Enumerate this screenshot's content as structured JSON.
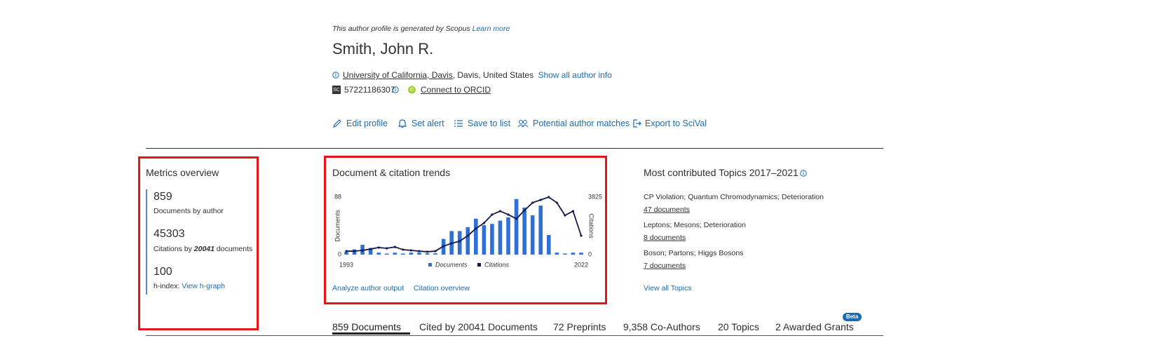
{
  "header": {
    "notice": "This author profile is generated by Scopus",
    "learn_more": "Learn more",
    "name": "Smith, John R.",
    "institution": "University of California, Davis",
    "location": ", Davis, United States",
    "show_info": "Show all author info",
    "id_badge": "SC",
    "author_id": "57221186307",
    "orcid_icon": "iD",
    "orcid_link": "Connect to ORCID"
  },
  "actions": [
    "Edit profile",
    "Set alert",
    "Save to list",
    "Potential author matches",
    "Export to SciVal"
  ],
  "metrics": {
    "title": "Metrics overview",
    "documents": {
      "value": "859",
      "label": "Documents by author"
    },
    "citations": {
      "value": "45303",
      "label_prefix": "Citations by",
      "label_number": "20041",
      "label_suffix": "documents"
    },
    "h_index": {
      "value": "100",
      "label": "h-index:",
      "link": "View h-graph"
    }
  },
  "trends": {
    "title": "Document & citation trends",
    "links": [
      "Analyze author output",
      "Citation overview"
    ]
  },
  "chart_data": {
    "type": "bar",
    "categories": [
      "1993",
      null,
      null,
      null,
      null,
      null,
      null,
      null,
      null,
      null,
      null,
      null,
      null,
      null,
      null,
      null,
      null,
      null,
      null,
      null,
      null,
      null,
      null,
      null,
      null,
      null,
      null,
      null,
      null,
      "2022"
    ],
    "y_label": "Documents",
    "y2_label": "Citations",
    "ylim": [
      0,
      88
    ],
    "yticks": [
      0,
      88
    ],
    "y2lim": [
      0,
      3825
    ],
    "y2ticks": [
      0,
      3825
    ],
    "series": [
      {
        "name": "Documents",
        "type": "bar",
        "color": "#2f6fd6",
        "values": [
          4,
          8,
          15,
          10,
          3,
          0,
          3,
          0,
          3,
          3,
          2,
          2,
          24,
          36,
          36,
          42,
          55,
          45,
          47,
          52,
          57,
          85,
          72,
          60,
          75,
          30,
          3,
          0,
          3,
          3
        ]
      },
      {
        "name": "Citations",
        "type": "line",
        "axis": "y2",
        "color": "#141a4a",
        "values": [
          230,
          230,
          280,
          370,
          470,
          420,
          510,
          330,
          280,
          230,
          190,
          230,
          560,
          750,
          890,
          1260,
          1730,
          2100,
          2660,
          2890,
          2660,
          2380,
          2940,
          3450,
          3640,
          3825,
          3450,
          2610,
          2890,
          1260
        ]
      }
    ]
  },
  "topics": {
    "title": "Most contributed Topics 2017–2021",
    "items": [
      {
        "name": "CP Violation; Quantum Chromodynamics; Deterioration",
        "documents": "47 documents"
      },
      {
        "name": "Leptons; Mesons; Deterioration",
        "documents": "8 documents"
      },
      {
        "name": "Boson; Partons; Higgs Bosons",
        "documents": "7 documents"
      }
    ],
    "view_all": "View all Topics"
  },
  "tabs": [
    "859 Documents",
    "Cited by 20041 Documents",
    "72 Preprints",
    "9,358 Co-Authors",
    "20 Topics",
    "2 Awarded Grants"
  ],
  "beta": "Beta"
}
